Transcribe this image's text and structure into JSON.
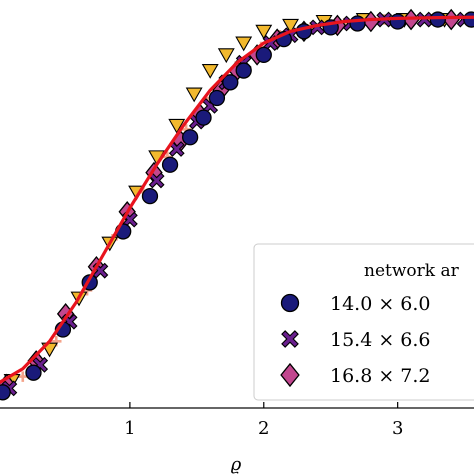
{
  "chart_data": {
    "type": "scatter",
    "title": "",
    "xlabel": "ϱ",
    "ylabel": "",
    "xlim": [
      0.0,
      3.6
    ],
    "ylim": [
      0.0,
      1.05
    ],
    "x_ticks": [
      "1",
      "2",
      "3"
    ],
    "x_tick_values": [
      1,
      2,
      3
    ],
    "grid": false,
    "legend": {
      "title": "network ar",
      "placement": "bottom-right",
      "entries": [
        "14.0 × 6.0",
        "15.4 × 6.6",
        "16.8 × 7.2"
      ]
    },
    "series": [
      {
        "name": "14.0 × 6.0",
        "marker": "circle",
        "color": "#1a1a7a",
        "points": [
          [
            0.05,
            0.04
          ],
          [
            0.28,
            0.09
          ],
          [
            0.5,
            0.2
          ],
          [
            0.7,
            0.32
          ],
          [
            0.95,
            0.45
          ],
          [
            1.15,
            0.54
          ],
          [
            1.3,
            0.62
          ],
          [
            1.45,
            0.69
          ],
          [
            1.55,
            0.74
          ],
          [
            1.65,
            0.79
          ],
          [
            1.75,
            0.83
          ],
          [
            1.85,
            0.86
          ],
          [
            2.0,
            0.9
          ],
          [
            2.15,
            0.94
          ],
          [
            2.3,
            0.96
          ],
          [
            2.5,
            0.97
          ],
          [
            2.7,
            0.98
          ],
          [
            3.0,
            0.985
          ],
          [
            3.3,
            0.99
          ],
          [
            3.55,
            0.99
          ]
        ]
      },
      {
        "name": "15.4 × 6.6",
        "marker": "x",
        "color": "#6a1f8e",
        "points": [
          [
            0.1,
            0.05
          ],
          [
            0.33,
            0.11
          ],
          [
            0.55,
            0.22
          ],
          [
            0.78,
            0.35
          ],
          [
            1.0,
            0.48
          ],
          [
            1.2,
            0.58
          ],
          [
            1.35,
            0.66
          ],
          [
            1.5,
            0.73
          ],
          [
            1.6,
            0.77
          ],
          [
            1.72,
            0.83
          ],
          [
            1.85,
            0.88
          ],
          [
            2.05,
            0.93
          ],
          [
            2.2,
            0.95
          ],
          [
            2.4,
            0.97
          ],
          [
            2.65,
            0.98
          ],
          [
            2.9,
            0.99
          ],
          [
            3.2,
            0.99
          ],
          [
            3.5,
            0.99
          ]
        ]
      },
      {
        "name": "16.8 × 7.2",
        "marker": "diamond",
        "color": "#c2478f",
        "points": [
          [
            0.08,
            0.06
          ],
          [
            0.3,
            0.12
          ],
          [
            0.52,
            0.24
          ],
          [
            0.75,
            0.36
          ],
          [
            0.98,
            0.5
          ],
          [
            1.18,
            0.6
          ],
          [
            1.38,
            0.68
          ],
          [
            1.52,
            0.75
          ],
          [
            1.68,
            0.81
          ],
          [
            1.8,
            0.86
          ],
          [
            1.95,
            0.9
          ],
          [
            2.1,
            0.94
          ],
          [
            2.3,
            0.96
          ],
          [
            2.55,
            0.975
          ],
          [
            2.8,
            0.985
          ],
          [
            3.1,
            0.99
          ],
          [
            3.4,
            0.99
          ]
        ]
      },
      {
        "name": "",
        "marker": "triangle-down",
        "color": "#f2b92e",
        "points": [
          [
            0.12,
            0.07
          ],
          [
            0.4,
            0.15
          ],
          [
            0.62,
            0.28
          ],
          [
            0.85,
            0.42
          ],
          [
            1.05,
            0.55
          ],
          [
            1.2,
            0.64
          ],
          [
            1.35,
            0.72
          ],
          [
            1.48,
            0.8
          ],
          [
            1.6,
            0.86
          ],
          [
            1.72,
            0.9
          ],
          [
            1.85,
            0.93
          ],
          [
            2.0,
            0.96
          ],
          [
            2.2,
            0.975
          ],
          [
            2.45,
            0.985
          ],
          [
            2.75,
            0.99
          ],
          [
            3.05,
            0.99
          ],
          [
            3.35,
            0.99
          ]
        ]
      },
      {
        "name": "",
        "marker": "plus",
        "color": "#f4a38a",
        "points": [
          [
            0.2,
            0.08
          ],
          [
            0.45,
            0.17
          ],
          [
            0.68,
            0.3
          ],
          [
            0.9,
            0.44
          ],
          [
            1.1,
            0.55
          ],
          [
            1.28,
            0.64
          ],
          [
            1.42,
            0.71
          ],
          [
            1.58,
            0.78
          ],
          [
            1.7,
            0.83
          ],
          [
            1.82,
            0.88
          ],
          [
            1.98,
            0.92
          ],
          [
            2.12,
            0.95
          ],
          [
            2.35,
            0.97
          ],
          [
            2.6,
            0.98
          ],
          [
            2.9,
            0.99
          ],
          [
            3.25,
            0.99
          ]
        ]
      }
    ],
    "fit_curve": {
      "color": "#e8141e",
      "points": [
        [
          0.0,
          0.06
        ],
        [
          0.2,
          0.1
        ],
        [
          0.4,
          0.17
        ],
        [
          0.6,
          0.27
        ],
        [
          0.8,
          0.39
        ],
        [
          1.0,
          0.51
        ],
        [
          1.2,
          0.62
        ],
        [
          1.4,
          0.72
        ],
        [
          1.6,
          0.81
        ],
        [
          1.8,
          0.88
        ],
        [
          2.0,
          0.93
        ],
        [
          2.2,
          0.96
        ],
        [
          2.4,
          0.975
        ],
        [
          2.6,
          0.985
        ],
        [
          2.8,
          0.99
        ],
        [
          3.0,
          0.993
        ],
        [
          3.3,
          0.995
        ],
        [
          3.6,
          0.996
        ]
      ]
    }
  }
}
